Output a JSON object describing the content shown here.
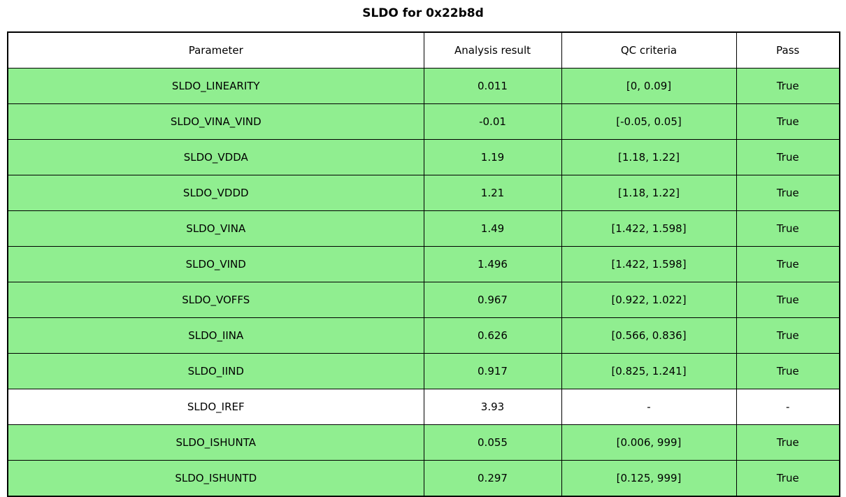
{
  "title": "SLDO for 0x22b8d",
  "colors": {
    "pass_green": "#90EE90",
    "neutral_white": "#FFFFFF",
    "border_black": "#000000"
  },
  "table": {
    "headers": [
      "Parameter",
      "Analysis result",
      "QC criteria",
      "Pass"
    ],
    "rows": [
      {
        "parameter": "SLDO_LINEARITY",
        "result": "0.011",
        "criteria": "[0, 0.09]",
        "pass": "True",
        "highlight": true
      },
      {
        "parameter": "SLDO_VINA_VIND",
        "result": "-0.01",
        "criteria": "[-0.05, 0.05]",
        "pass": "True",
        "highlight": true
      },
      {
        "parameter": "SLDO_VDDA",
        "result": "1.19",
        "criteria": "[1.18, 1.22]",
        "pass": "True",
        "highlight": true
      },
      {
        "parameter": "SLDO_VDDD",
        "result": "1.21",
        "criteria": "[1.18, 1.22]",
        "pass": "True",
        "highlight": true
      },
      {
        "parameter": "SLDO_VINA",
        "result": "1.49",
        "criteria": "[1.422, 1.598]",
        "pass": "True",
        "highlight": true
      },
      {
        "parameter": "SLDO_VIND",
        "result": "1.496",
        "criteria": "[1.422, 1.598]",
        "pass": "True",
        "highlight": true
      },
      {
        "parameter": "SLDO_VOFFS",
        "result": "0.967",
        "criteria": "[0.922, 1.022]",
        "pass": "True",
        "highlight": true
      },
      {
        "parameter": "SLDO_IINA",
        "result": "0.626",
        "criteria": "[0.566, 0.836]",
        "pass": "True",
        "highlight": true
      },
      {
        "parameter": "SLDO_IIND",
        "result": "0.917",
        "criteria": "[0.825, 1.241]",
        "pass": "True",
        "highlight": true
      },
      {
        "parameter": "SLDO_IREF",
        "result": "3.93",
        "criteria": "-",
        "pass": "-",
        "highlight": false
      },
      {
        "parameter": "SLDO_ISHUNTA",
        "result": "0.055",
        "criteria": "[0.006, 999]",
        "pass": "True",
        "highlight": true
      },
      {
        "parameter": "SLDO_ISHUNTD",
        "result": "0.297",
        "criteria": "[0.125, 999]",
        "pass": "True",
        "highlight": true
      }
    ]
  }
}
